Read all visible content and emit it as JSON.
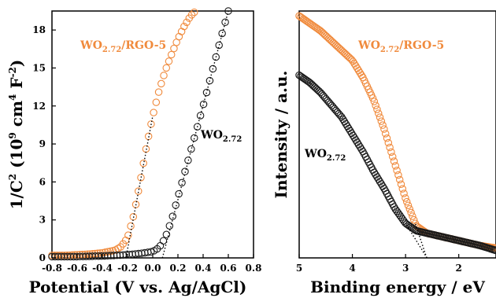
{
  "colors": {
    "orange": "#F08A3C",
    "black": "#1a1a1a",
    "frame": "#000000"
  },
  "chart_data": [
    {
      "type": "scatter",
      "title": "",
      "xlabel": "Potential (V vs. Ag/AgCl)",
      "ylabel_parts": {
        "base": "1/C",
        "sup1": "2",
        "mid": " (10",
        "sup2": "9",
        "mid2": " cm",
        "sup3": "4",
        "mid3": " F",
        "sup4": "-2",
        "end": ")"
      },
      "xlim": [
        -0.8,
        0.8
      ],
      "ylim": [
        0,
        19.5
      ],
      "xticks": [
        "-0.8",
        "-0.6",
        "-0.4",
        "-0.2",
        "0.0",
        "0.2",
        "0.4",
        "0.6",
        "0.8"
      ],
      "yticks": [
        "0",
        "3",
        "6",
        "9",
        "12",
        "15",
        "18"
      ],
      "series": [
        {
          "name": "WO2.72/RGO-5",
          "label_base": "WO",
          "label_sub": "2.72",
          "label_tail": "/RGO-5",
          "color": "orange",
          "x": [
            -0.8,
            -0.7,
            -0.6,
            -0.5,
            -0.4,
            -0.3,
            -0.25,
            -0.2,
            -0.15,
            -0.1,
            -0.05,
            0.0,
            0.05,
            0.1,
            0.15,
            0.2,
            0.25,
            0.3,
            0.35
          ],
          "y": [
            0.2,
            0.2,
            0.25,
            0.3,
            0.4,
            0.6,
            0.9,
            1.6,
            3.4,
            6.0,
            8.8,
            11.2,
            13.2,
            14.8,
            16.1,
            17.3,
            18.3,
            19.1,
            19.6
          ]
        },
        {
          "name": "WO2.72",
          "label_base": "WO",
          "label_sub": "2.72",
          "label_tail": "",
          "color": "black",
          "x": [
            -0.8,
            -0.6,
            -0.4,
            -0.2,
            -0.1,
            0.0,
            0.05,
            0.1,
            0.15,
            0.2,
            0.25,
            0.3,
            0.35,
            0.4,
            0.45,
            0.5,
            0.55,
            0.6
          ],
          "y": [
            0.1,
            0.1,
            0.15,
            0.25,
            0.35,
            0.5,
            0.8,
            1.6,
            3.0,
            4.8,
            6.6,
            8.4,
            10.2,
            12.0,
            13.9,
            15.8,
            17.7,
            19.5
          ]
        }
      ],
      "tangent_lines": [
        {
          "color": "orange",
          "x": [
            -0.2,
            0.0
          ]
        },
        {
          "color": "black",
          "x": [
            0.03,
            0.6
          ]
        }
      ]
    },
    {
      "type": "scatter",
      "title": "",
      "xlabel": "Binding energy / eV",
      "ylabel": "Intensity / a.u.",
      "xlim": [
        5,
        1.3
      ],
      "ylim": [
        0,
        1
      ],
      "xticks": [
        "5",
        "4",
        "3",
        "2"
      ],
      "yticks": [],
      "series": [
        {
          "name": "WO2.72/RGO-5",
          "label_base": "WO",
          "label_sub": "2.72",
          "label_tail": "/RGO-5",
          "color": "orange",
          "x": [
            5.0,
            4.8,
            4.6,
            4.4,
            4.2,
            4.0,
            3.8,
            3.6,
            3.4,
            3.2,
            3.0,
            2.8,
            2.6,
            2.4,
            2.2,
            2.0,
            1.8,
            1.6,
            1.3
          ],
          "y": [
            0.98,
            0.95,
            0.92,
            0.88,
            0.84,
            0.8,
            0.73,
            0.64,
            0.52,
            0.38,
            0.24,
            0.13,
            0.1,
            0.09,
            0.08,
            0.07,
            0.06,
            0.05,
            0.04
          ]
        },
        {
          "name": "WO2.72",
          "label_base": "WO",
          "label_sub": "2.72",
          "label_tail": "",
          "color": "black",
          "x": [
            5.0,
            4.8,
            4.6,
            4.4,
            4.2,
            4.0,
            3.8,
            3.6,
            3.4,
            3.2,
            3.0,
            2.8,
            2.6,
            2.4,
            2.2,
            2.0,
            1.8,
            1.6,
            1.3
          ],
          "y": [
            0.74,
            0.71,
            0.67,
            0.62,
            0.57,
            0.5,
            0.43,
            0.35,
            0.28,
            0.2,
            0.14,
            0.11,
            0.1,
            0.09,
            0.08,
            0.07,
            0.06,
            0.05,
            0.03
          ]
        }
      ],
      "tangent_lines": [
        {
          "color": "orange",
          "x": [
            3.4,
            2.82
          ]
        },
        {
          "color": "black",
          "x": [
            3.6,
            3.0
          ]
        }
      ]
    }
  ]
}
